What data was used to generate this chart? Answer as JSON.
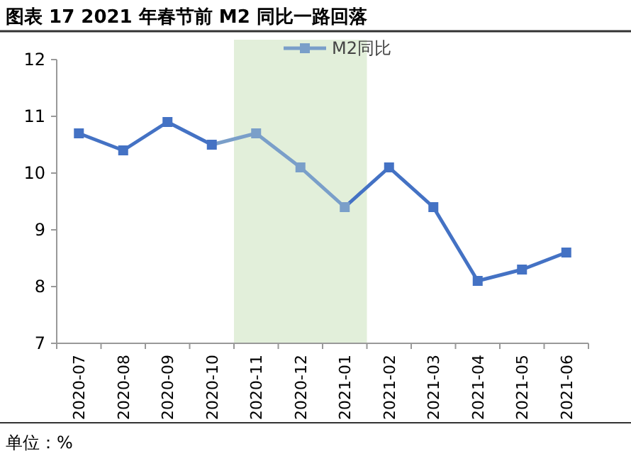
{
  "chart_data": {
    "type": "line",
    "title": "图表 17 2021 年春节前 M2 同比一路回落",
    "categories": [
      "2020-07",
      "2020-08",
      "2020-09",
      "2020-10",
      "2020-11",
      "2020-12",
      "2021-01",
      "2021-02",
      "2021-03",
      "2021-04",
      "2021-05",
      "2021-06"
    ],
    "series": [
      {
        "name": "M2同比",
        "color": "#7a9fc9",
        "colors": [
          "#4472c4",
          "#4472c4",
          "#4472c4",
          "#4472c4",
          "#7a9fc9",
          "#7a9fc9",
          "#7a9fc9",
          "#4472c4",
          "#4472c4",
          "#4472c4",
          "#4472c4",
          "#4472c4"
        ],
        "values": [
          10.7,
          10.4,
          10.9,
          10.5,
          10.7,
          10.1,
          9.4,
          10.1,
          9.4,
          8.1,
          8.3,
          8.6
        ]
      }
    ],
    "ylim": [
      7,
      12
    ],
    "yticks": [
      7,
      8,
      9,
      10,
      11,
      12
    ],
    "bands": [
      {
        "axis": "x",
        "from": "2020-11",
        "to": "2021-01",
        "color": "#e2efda"
      }
    ],
    "annotations": [
      "单位：%"
    ],
    "legend": "top right",
    "marker": "square",
    "grid": false
  }
}
